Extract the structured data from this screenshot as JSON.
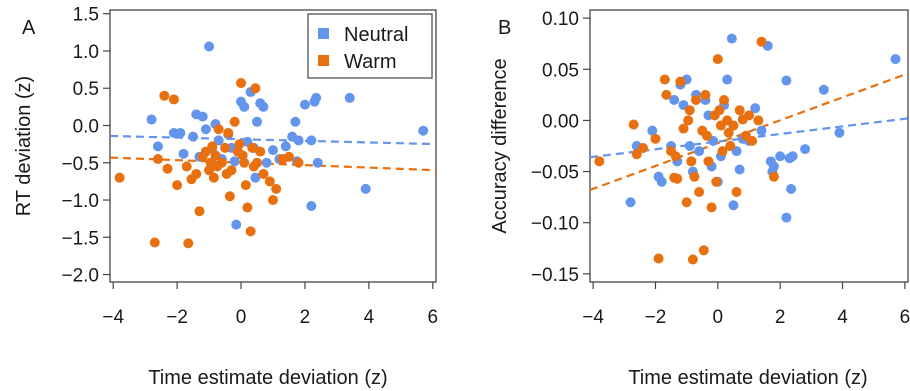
{
  "panels": [
    {
      "letter": "A",
      "xlabel": "Time estimate deviation (z)",
      "ylabel": "RT deviation (z)"
    },
    {
      "letter": "B",
      "xlabel": "Time estimate deviation (z)",
      "ylabel": "Accuracy difference"
    }
  ],
  "legend": {
    "placement": "top-right of panel A",
    "items": [
      {
        "label": "Neutral",
        "color": "#6495ed"
      },
      {
        "label": "Warm",
        "color": "#e8700e"
      }
    ]
  },
  "chart_data": [
    {
      "type": "scatter",
      "panel": "A",
      "xlabel": "Time estimate deviation (z)",
      "ylabel": "RT deviation (z)",
      "xlim": [
        -4.1,
        6.1
      ],
      "ylim": [
        -2.1,
        1.55
      ],
      "xticks": [
        -4,
        -2,
        0,
        2,
        4,
        6
      ],
      "xtick_labels": [
        "−4",
        "−2",
        "0",
        "2",
        "4",
        "6"
      ],
      "yticks": [
        -2.0,
        -1.5,
        -1.0,
        -0.5,
        0.0,
        0.5,
        1.0,
        1.5
      ],
      "ytick_labels": [
        "−2.0",
        "−1.5",
        "−1.0",
        "−0.5",
        "0.0",
        "0.5",
        "1.0",
        "1.5"
      ],
      "grid": false,
      "series": [
        {
          "name": "Neutral",
          "color": "#6495ed",
          "trend": [
            [
              -4.1,
              -0.14
            ],
            [
              6.1,
              -0.25
            ]
          ],
          "points": [
            [
              -2.8,
              0.08
            ],
            [
              -2.6,
              -0.28
            ],
            [
              -2.1,
              -0.1
            ],
            [
              -1.9,
              -0.1
            ],
            [
              -1.8,
              -0.38
            ],
            [
              -1.5,
              -0.15
            ],
            [
              -1.4,
              0.15
            ],
            [
              -1.3,
              -0.42
            ],
            [
              -1.2,
              0.12
            ],
            [
              -1.1,
              -0.05
            ],
            [
              -1.0,
              1.06
            ],
            [
              -0.9,
              -0.3
            ],
            [
              -0.8,
              0.02
            ],
            [
              -0.7,
              -0.2
            ],
            [
              -0.6,
              -0.45
            ],
            [
              -0.4,
              -0.12
            ],
            [
              -0.3,
              -0.3
            ],
            [
              -0.2,
              -0.48
            ],
            [
              -0.15,
              -1.33
            ],
            [
              0.0,
              0.32
            ],
            [
              0.1,
              0.25
            ],
            [
              0.2,
              -0.22
            ],
            [
              0.3,
              0.45
            ],
            [
              0.4,
              -0.3
            ],
            [
              0.45,
              -0.7
            ],
            [
              0.5,
              0.05
            ],
            [
              0.6,
              0.3
            ],
            [
              0.7,
              0.25
            ],
            [
              0.8,
              -0.5
            ],
            [
              1.0,
              -0.33
            ],
            [
              1.2,
              -0.45
            ],
            [
              1.4,
              -0.28
            ],
            [
              1.6,
              -0.15
            ],
            [
              1.7,
              0.05
            ],
            [
              1.75,
              -0.48
            ],
            [
              1.8,
              -0.2
            ],
            [
              2.0,
              0.28
            ],
            [
              2.2,
              -1.08
            ],
            [
              2.2,
              -0.2
            ],
            [
              2.3,
              0.32
            ],
            [
              2.35,
              0.37
            ],
            [
              2.4,
              -0.5
            ],
            [
              3.4,
              0.37
            ],
            [
              3.9,
              -0.85
            ],
            [
              5.7,
              -0.07
            ]
          ]
        },
        {
          "name": "Warm",
          "color": "#e8700e",
          "trend": [
            [
              -4.1,
              -0.43
            ],
            [
              6.1,
              -0.6
            ]
          ],
          "points": [
            [
              -3.8,
              -0.7
            ],
            [
              -2.7,
              -1.57
            ],
            [
              -2.6,
              -0.45
            ],
            [
              -2.4,
              0.4
            ],
            [
              -2.3,
              -0.58
            ],
            [
              -2.1,
              0.35
            ],
            [
              -2.0,
              -0.8
            ],
            [
              -1.7,
              -0.55
            ],
            [
              -1.65,
              -1.58
            ],
            [
              -1.55,
              -0.72
            ],
            [
              -1.4,
              -0.65
            ],
            [
              -1.3,
              -1.15
            ],
            [
              -1.2,
              -0.42
            ],
            [
              -1.1,
              -0.35
            ],
            [
              -1.0,
              -0.6
            ],
            [
              -0.95,
              -0.5
            ],
            [
              -0.9,
              -0.28
            ],
            [
              -0.85,
              -0.7
            ],
            [
              -0.8,
              -0.4
            ],
            [
              -0.75,
              -0.55
            ],
            [
              -0.7,
              -0.05
            ],
            [
              -0.6,
              -0.5
            ],
            [
              -0.5,
              -0.3
            ],
            [
              -0.45,
              -0.65
            ],
            [
              -0.4,
              -0.1
            ],
            [
              -0.35,
              -0.95
            ],
            [
              -0.3,
              -0.6
            ],
            [
              -0.2,
              0.05
            ],
            [
              -0.1,
              -0.35
            ],
            [
              -0.05,
              -0.25
            ],
            [
              0.0,
              0.57
            ],
            [
              0.05,
              -0.4
            ],
            [
              0.1,
              -0.5
            ],
            [
              0.15,
              -0.8
            ],
            [
              0.2,
              -1.1
            ],
            [
              0.3,
              -1.42
            ],
            [
              0.35,
              -0.3
            ],
            [
              0.4,
              -0.55
            ],
            [
              0.5,
              -0.5
            ],
            [
              0.6,
              -0.35
            ],
            [
              0.7,
              -0.65
            ],
            [
              0.9,
              -0.75
            ],
            [
              1.0,
              -1.0
            ],
            [
              1.1,
              -0.85
            ],
            [
              1.3,
              -0.45
            ],
            [
              1.5,
              -0.42
            ],
            [
              1.8,
              -0.5
            ],
            [
              0.45,
              0.5
            ]
          ]
        }
      ]
    },
    {
      "type": "scatter",
      "panel": "B",
      "xlabel": "Time estimate deviation (z)",
      "ylabel": "Accuracy difference",
      "xlim": [
        -4.1,
        6.1
      ],
      "ylim": [
        -0.158,
        0.108
      ],
      "xticks": [
        -4,
        -2,
        0,
        2,
        4,
        6
      ],
      "xtick_labels": [
        "−4",
        "−2",
        "0",
        "2",
        "4",
        "6"
      ],
      "yticks": [
        -0.15,
        -0.1,
        -0.05,
        0.0,
        0.05,
        0.1
      ],
      "ytick_labels": [
        "−0.15",
        "−0.10",
        "−0.05",
        "0.00",
        "0.05",
        "0.10"
      ],
      "grid": false,
      "series": [
        {
          "name": "Neutral",
          "color": "#6495ed",
          "trend": [
            [
              -4.1,
              -0.036
            ],
            [
              6.1,
              0.002
            ]
          ],
          "points": [
            [
              -2.8,
              -0.08
            ],
            [
              -2.6,
              -0.025
            ],
            [
              -2.1,
              -0.01
            ],
            [
              -1.9,
              -0.055
            ],
            [
              -1.8,
              -0.06
            ],
            [
              -1.5,
              -0.025
            ],
            [
              -1.4,
              0.02
            ],
            [
              -1.3,
              -0.04
            ],
            [
              -1.2,
              0.035
            ],
            [
              -1.1,
              0.015
            ],
            [
              -1.0,
              0.04
            ],
            [
              -0.9,
              -0.025
            ],
            [
              -0.8,
              -0.05
            ],
            [
              -0.7,
              0.025
            ],
            [
              -0.6,
              -0.03
            ],
            [
              -0.4,
              0.02
            ],
            [
              -0.3,
              0.005
            ],
            [
              -0.2,
              -0.045
            ],
            [
              -0.15,
              -0.02
            ],
            [
              0.0,
              -0.06
            ],
            [
              0.1,
              -0.035
            ],
            [
              0.2,
              0.015
            ],
            [
              0.3,
              0.04
            ],
            [
              0.4,
              -0.025
            ],
            [
              0.45,
              0.08
            ],
            [
              0.5,
              -0.083
            ],
            [
              0.6,
              -0.03
            ],
            [
              0.7,
              -0.048
            ],
            [
              0.8,
              -0.018
            ],
            [
              1.0,
              -0.02
            ],
            [
              1.2,
              0.012
            ],
            [
              1.4,
              -0.01
            ],
            [
              1.6,
              0.073
            ],
            [
              1.7,
              -0.04
            ],
            [
              1.75,
              -0.05
            ],
            [
              1.8,
              -0.045
            ],
            [
              2.0,
              -0.035
            ],
            [
              2.2,
              -0.095
            ],
            [
              2.2,
              0.039
            ],
            [
              2.3,
              -0.037
            ],
            [
              2.35,
              -0.067
            ],
            [
              2.4,
              -0.035
            ],
            [
              2.8,
              -0.028
            ],
            [
              3.4,
              0.03
            ],
            [
              3.9,
              -0.012
            ],
            [
              5.7,
              0.06
            ]
          ]
        },
        {
          "name": "Warm",
          "color": "#e8700e",
          "trend": [
            [
              -4.1,
              -0.068
            ],
            [
              6.1,
              0.046
            ]
          ],
          "points": [
            [
              -3.8,
              -0.04
            ],
            [
              -2.7,
              -0.004
            ],
            [
              -2.6,
              -0.033
            ],
            [
              -2.4,
              -0.027
            ],
            [
              -2.0,
              -0.018
            ],
            [
              -1.9,
              -0.135
            ],
            [
              -1.7,
              0.04
            ],
            [
              -1.65,
              0.025
            ],
            [
              -1.5,
              -0.03
            ],
            [
              -1.4,
              -0.056
            ],
            [
              -1.35,
              -0.035
            ],
            [
              -1.3,
              -0.057
            ],
            [
              -1.2,
              0.038
            ],
            [
              -1.1,
              -0.008
            ],
            [
              -1.0,
              -0.08
            ],
            [
              -0.95,
              0.0
            ],
            [
              -0.9,
              0.01
            ],
            [
              -0.85,
              -0.04
            ],
            [
              -0.8,
              -0.136
            ],
            [
              -0.75,
              -0.055
            ],
            [
              -0.7,
              0.02
            ],
            [
              -0.6,
              -0.07
            ],
            [
              -0.5,
              -0.01
            ],
            [
              -0.45,
              -0.127
            ],
            [
              -0.4,
              0.025
            ],
            [
              -0.35,
              -0.015
            ],
            [
              -0.3,
              -0.04
            ],
            [
              -0.2,
              -0.085
            ],
            [
              -0.1,
              0.005
            ],
            [
              -0.05,
              -0.06
            ],
            [
              0.0,
              0.06
            ],
            [
              0.05,
              0.01
            ],
            [
              0.1,
              -0.005
            ],
            [
              0.15,
              -0.03
            ],
            [
              0.2,
              0.02
            ],
            [
              0.3,
              0.0
            ],
            [
              0.35,
              -0.012
            ],
            [
              0.4,
              -0.025
            ],
            [
              0.5,
              -0.005
            ],
            [
              0.6,
              -0.07
            ],
            [
              0.7,
              0.01
            ],
            [
              0.9,
              -0.015
            ],
            [
              1.0,
              0.005
            ],
            [
              1.1,
              -0.02
            ],
            [
              1.3,
              0.0
            ],
            [
              1.4,
              0.077
            ],
            [
              1.8,
              -0.055
            ],
            [
              0.8,
              0.001
            ]
          ]
        }
      ]
    }
  ]
}
